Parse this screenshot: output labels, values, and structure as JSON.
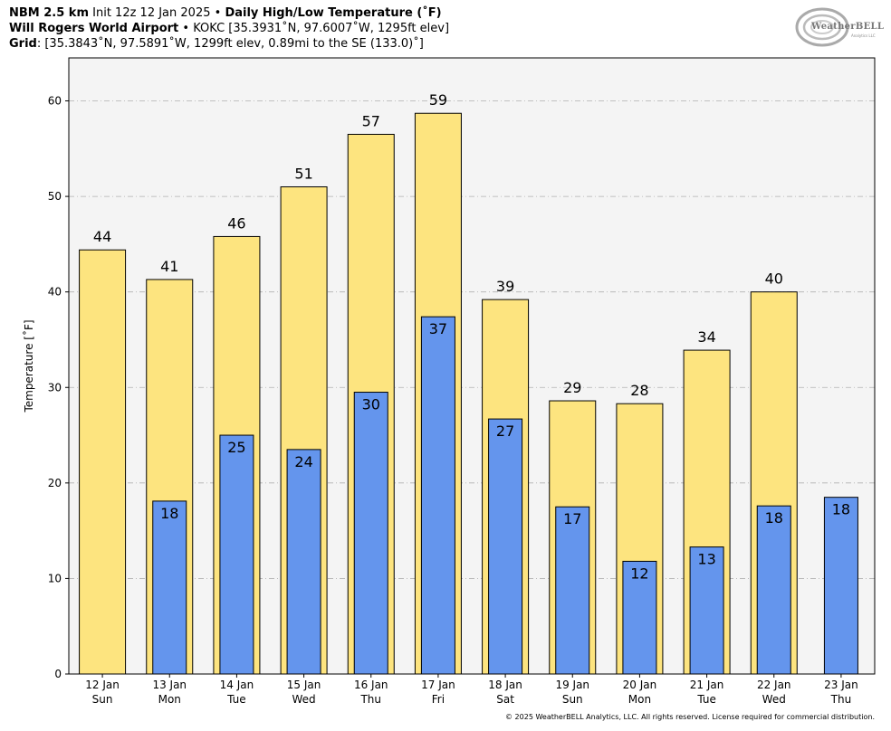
{
  "header": {
    "model": "NBM 2.5 km",
    "init": "Init 12z 12 Jan 2025",
    "bullet": "•",
    "product": "Daily High/Low Temperature (˚F)",
    "station_name": "Will Rogers World Airport",
    "station_info": "KOKC [35.3931˚N, 97.6007˚W, 1295ft elev]",
    "grid_label": "Grid",
    "grid_info": ": [35.3843˚N, 97.5891˚W, 1299ft elev, 0.89mi to the SE (133.0)˚]"
  },
  "logo": {
    "text": "WeatherBELL",
    "sub": "Analytics LLC"
  },
  "copyright": "© 2025 WeatherBELL Analytics, LLC. All rights reserved. License required for commercial distribution.",
  "colors": {
    "high": "#FDE47F",
    "low": "#6495ED",
    "plot_bg": "#F4F4F4",
    "grid": "#B0B0B0"
  },
  "chart_data": {
    "type": "bar",
    "ylabel": "Temperature [˚F]",
    "ylim": [
      0,
      64.5
    ],
    "yticks": [
      0,
      10,
      20,
      30,
      40,
      50,
      60
    ],
    "categories": [
      {
        "date": "12 Jan",
        "day": "Sun"
      },
      {
        "date": "13 Jan",
        "day": "Mon"
      },
      {
        "date": "14 Jan",
        "day": "Tue"
      },
      {
        "date": "15 Jan",
        "day": "Wed"
      },
      {
        "date": "16 Jan",
        "day": "Thu"
      },
      {
        "date": "17 Jan",
        "day": "Fri"
      },
      {
        "date": "18 Jan",
        "day": "Sat"
      },
      {
        "date": "19 Jan",
        "day": "Sun"
      },
      {
        "date": "20 Jan",
        "day": "Mon"
      },
      {
        "date": "21 Jan",
        "day": "Tue"
      },
      {
        "date": "22 Jan",
        "day": "Wed"
      },
      {
        "date": "23 Jan",
        "day": "Thu"
      }
    ],
    "series": [
      {
        "name": "High",
        "values": [
          44.4,
          41.3,
          45.8,
          51.0,
          56.5,
          58.7,
          39.2,
          28.6,
          28.3,
          33.9,
          40.0,
          null
        ],
        "labels": [
          "44",
          "41",
          "46",
          "51",
          "57",
          "59",
          "39",
          "29",
          "28",
          "34",
          "40",
          ""
        ]
      },
      {
        "name": "Low",
        "values": [
          null,
          18.1,
          25.0,
          23.5,
          29.5,
          37.4,
          26.7,
          17.5,
          11.8,
          13.3,
          17.6,
          18.5
        ],
        "labels": [
          "",
          "18",
          "25",
          "24",
          "30",
          "37",
          "27",
          "17",
          "12",
          "13",
          "18",
          "18"
        ]
      }
    ]
  }
}
